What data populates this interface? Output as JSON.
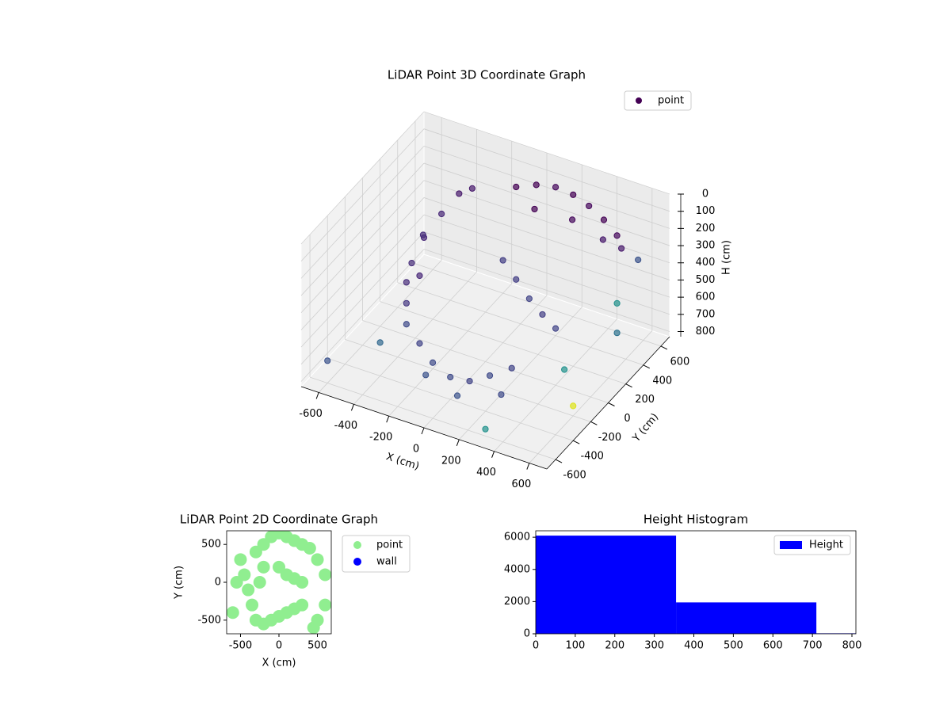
{
  "chart_data": [
    {
      "type": "scatter3d",
      "title": "LiDAR Point 3D Coordinate Graph",
      "x_label": "X (cm)",
      "y_label": "Y (cm)",
      "z_label": "H (cm)",
      "xlim": [
        -700,
        700
      ],
      "ylim": [
        -700,
        700
      ],
      "zlim": [
        0,
        830
      ],
      "z_inverted": true,
      "xticks": [
        -600,
        -400,
        -200,
        0,
        200,
        400,
        600
      ],
      "yticks": [
        -600,
        -400,
        -200,
        0,
        200,
        400,
        600
      ],
      "zticks": [
        0,
        100,
        200,
        300,
        400,
        500,
        600,
        700,
        800
      ],
      "grid": true,
      "legend": "upper right",
      "series": [
        {
          "name": "point",
          "color": "#440154",
          "x": [
            -100,
            0,
            100,
            200,
            300,
            400,
            500,
            550,
            0,
            200,
            400,
            -300,
            -250,
            -350,
            -400,
            -420,
            -400,
            -350,
            -300,
            -380,
            -300,
            -200,
            -100,
            0,
            100,
            200,
            300,
            -150,
            50,
            250,
            0,
            100,
            200,
            300,
            400,
            600,
            650,
            500,
            620,
            -600,
            -500,
            300,
            650
          ],
          "y": [
            550,
            580,
            600,
            600,
            580,
            550,
            500,
            450,
            560,
            590,
            540,
            300,
            350,
            200,
            100,
            0,
            -100,
            -200,
            -150,
            50,
            -300,
            -350,
            -400,
            -400,
            -380,
            -350,
            -300,
            -380,
            -420,
            -320,
            200,
            150,
            100,
            50,
            0,
            300,
            200,
            -100,
            500,
            -600,
            -200,
            -600,
            -300
          ],
          "z": [
            150,
            120,
            110,
            120,
            140,
            170,
            200,
            230,
            250,
            260,
            280,
            120,
            100,
            200,
            300,
            400,
            450,
            500,
            350,
            250,
            550,
            600,
            650,
            700,
            700,
            650,
            600,
            750,
            780,
            760,
            350,
            400,
            450,
            480,
            500,
            450,
            550,
            650,
            300,
            700,
            780,
            790,
            700
          ],
          "colors": [
            "#440154",
            "#440154",
            "#46085c",
            "#440154",
            "#46085c",
            "#440154",
            "#46085c",
            "#481a6c",
            "#440154",
            "#46085c",
            "#481a6c",
            "#481a6c",
            "#481a6c",
            "#482878",
            "#482878",
            "#472d7b",
            "#472d7b",
            "#453781",
            "#482878",
            "#472d7b",
            "#3e4a89",
            "#414487",
            "#3e4a89",
            "#3e4a89",
            "#414487",
            "#3e4a89",
            "#414487",
            "#3b528b",
            "#3b528b",
            "#3e4a89",
            "#433e85",
            "#433e85",
            "#414487",
            "#433e85",
            "#414487",
            "#21918c",
            "#2c728e",
            "#21918c",
            "#3b528b",
            "#3b528b",
            "#31688e",
            "#21918c",
            "#dde318"
          ]
        }
      ]
    },
    {
      "type": "scatter",
      "title": "LiDAR Point 2D Coordinate Graph",
      "x_label": "X (cm)",
      "y_label": "Y (cm)",
      "xlim": [
        -680,
        680
      ],
      "ylim": [
        -680,
        680
      ],
      "xticks": [
        -500,
        0,
        500
      ],
      "yticks": [
        -500,
        0,
        500
      ],
      "legend": "outside right",
      "series": [
        {
          "name": "point",
          "color": "#90ee90",
          "x": [
            -500,
            -450,
            -400,
            -350,
            -300,
            -200,
            -100,
            0,
            100,
            200,
            300,
            -300,
            -200,
            -100,
            0,
            100,
            200,
            300,
            400,
            500,
            600,
            600,
            500,
            0,
            100,
            200,
            300,
            -250,
            -200,
            -600,
            -550,
            450
          ],
          "y": [
            300,
            100,
            -100,
            -300,
            -500,
            -550,
            -500,
            -450,
            -400,
            -350,
            -300,
            400,
            500,
            600,
            650,
            600,
            550,
            500,
            450,
            300,
            100,
            -300,
            -500,
            200,
            100,
            50,
            0,
            0,
            200,
            -400,
            0,
            -600
          ]
        },
        {
          "name": "wall",
          "color": "#0000ff",
          "x": [],
          "y": []
        }
      ]
    },
    {
      "type": "hist",
      "title": "Height Histogram",
      "bins": [
        0,
        355,
        710,
        810
      ],
      "counts": [
        6100,
        1950,
        30
      ],
      "xlim": [
        0,
        810
      ],
      "ylim": [
        0,
        6400
      ],
      "xticks": [
        0,
        100,
        200,
        300,
        400,
        500,
        600,
        700,
        800
      ],
      "yticks": [
        0,
        2000,
        4000,
        6000
      ],
      "legend": "upper right",
      "series": [
        {
          "name": "Height",
          "color": "#0000ff"
        }
      ]
    }
  ]
}
